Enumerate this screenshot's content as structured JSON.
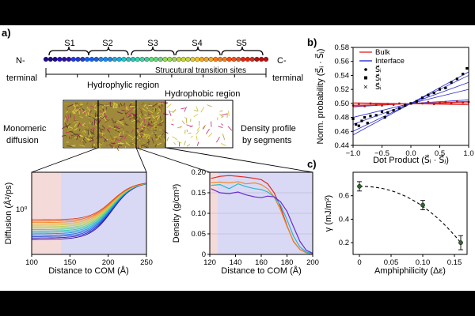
{
  "panels": {
    "a": "a)",
    "b": "b)",
    "c": "c)"
  },
  "panel_a": {
    "segments": [
      "S1",
      "S2",
      "S3",
      "S4",
      "S5"
    ],
    "n_terminal": [
      "N-",
      "terminal"
    ],
    "c_terminal": [
      "C-",
      "terminal"
    ],
    "transition_label": "Strucutural transition sites",
    "hydrophylic_label": "Hydrophylic region",
    "hydrophobic_label": "Hydrophobic region",
    "monomeric_label": [
      "Monomeric",
      "diffusion"
    ],
    "density_label": [
      "Density profile",
      "by segments"
    ],
    "bead_colors": [
      "#1a0a8c",
      "#2a0fb0",
      "#1f3ad6",
      "#1560e8",
      "#1e88e6",
      "#22a8d8",
      "#27c4c2",
      "#3ed0a0",
      "#6ad67a",
      "#9ad85a",
      "#c6d63e",
      "#e8c830",
      "#f5a623",
      "#f57e1c",
      "#ee5318",
      "#d92a15",
      "#b3120f"
    ],
    "diffusion_plot": {
      "ylabel": "Diffusion (Å²/ps)",
      "xlabel": "Distance to COM (Å)",
      "xticks": [
        "100",
        "150",
        "200",
        "250"
      ],
      "ytick": "10⁰",
      "xlim": [
        100,
        250
      ],
      "curve_colors": [
        "#2b0aa8",
        "#3a1ec0",
        "#1f4ad8",
        "#1d6fe8",
        "#1a93e0",
        "#20b0d0",
        "#2fc6b0",
        "#58d08a",
        "#8bd46a",
        "#b6d24e",
        "#d6c83e",
        "#eeb036",
        "#f4902c",
        "#ef6a24",
        "#e0401e"
      ]
    },
    "density_plot": {
      "ylabel": "Density (g/cm³)",
      "xlabel": "Distance to COM (Å)",
      "xticks": [
        "120",
        "140",
        "160",
        "180",
        "200"
      ],
      "yticks": [
        "0",
        "0.05",
        "0.10",
        "0.15",
        "0.20"
      ],
      "xlim": [
        120,
        200
      ],
      "ylim": [
        0,
        0.2
      ],
      "series": [
        {
          "color": "#e0261e",
          "x": [
            121,
            128,
            135,
            142,
            148,
            155,
            160,
            165,
            170,
            175,
            180,
            185,
            190,
            195,
            200
          ],
          "y": [
            0.185,
            0.19,
            0.192,
            0.19,
            0.188,
            0.185,
            0.182,
            0.172,
            0.15,
            0.115,
            0.07,
            0.032,
            0.012,
            0.004,
            0.001
          ]
        },
        {
          "color": "#f08a2a",
          "x": [
            121,
            128,
            135,
            142,
            148,
            155,
            160,
            165,
            170,
            175,
            180,
            185,
            190,
            195,
            200
          ],
          "y": [
            0.175,
            0.176,
            0.174,
            0.177,
            0.172,
            0.174,
            0.17,
            0.16,
            0.14,
            0.108,
            0.068,
            0.033,
            0.012,
            0.004,
            0.001
          ]
        },
        {
          "color": "#29b7c9",
          "x": [
            121,
            128,
            135,
            142,
            148,
            155,
            160,
            165,
            170,
            175,
            180,
            185,
            190,
            195,
            200
          ],
          "y": [
            0.168,
            0.17,
            0.16,
            0.172,
            0.165,
            0.16,
            0.158,
            0.152,
            0.14,
            0.12,
            0.085,
            0.045,
            0.018,
            0.006,
            0.002
          ]
        },
        {
          "color": "#6a2ad1",
          "x": [
            121,
            128,
            135,
            142,
            148,
            155,
            160,
            165,
            170,
            175,
            180,
            185,
            190,
            195,
            200
          ],
          "y": [
            0.16,
            0.15,
            0.148,
            0.152,
            0.145,
            0.14,
            0.138,
            0.142,
            0.14,
            0.128,
            0.105,
            0.068,
            0.032,
            0.01,
            0.003
          ]
        }
      ]
    }
  },
  "panel_b": {
    "chart_data": {
      "type": "scatter",
      "xlabel": "Dot Product  (S⃗ᵢ · S⃗ⱼ)",
      "ylabel": "Norm. probability (S⃗ᵢ · S⃗ⱼ)",
      "xlim": [
        -1.0,
        1.0
      ],
      "ylim": [
        0.44,
        0.58
      ],
      "xticks": [
        "−1.0",
        "−0.5",
        "0.0",
        "0.5",
        "1.0"
      ],
      "yticks": [
        "0.44",
        "0.46",
        "0.48",
        "0.50",
        "0.52",
        "0.54",
        "0.56",
        "0.58"
      ],
      "legend": [
        "Bulk",
        "Interface",
        "S⃗ᵢ",
        "S⃗ᵢ",
        "S⃗ᵢ"
      ],
      "bulk_points": [
        [
          -1.0,
          0.497
        ],
        [
          -0.9,
          0.499
        ],
        [
          -0.8,
          0.496
        ],
        [
          -0.7,
          0.5
        ],
        [
          -0.6,
          0.498
        ],
        [
          -0.5,
          0.497
        ],
        [
          -0.4,
          0.499
        ],
        [
          -0.3,
          0.498
        ],
        [
          -0.2,
          0.5
        ],
        [
          -0.1,
          0.499
        ],
        [
          0.0,
          0.5
        ],
        [
          0.1,
          0.501
        ],
        [
          0.2,
          0.5
        ],
        [
          0.3,
          0.502
        ],
        [
          0.4,
          0.499
        ],
        [
          0.5,
          0.501
        ],
        [
          0.6,
          0.502
        ],
        [
          0.7,
          0.5
        ],
        [
          0.8,
          0.503
        ],
        [
          0.9,
          0.501
        ],
        [
          1.0,
          0.502
        ]
      ],
      "interface_points": [
        [
          -1.0,
          0.478
        ],
        [
          -0.95,
          0.47
        ],
        [
          -0.9,
          0.468
        ],
        [
          -0.85,
          0.475
        ],
        [
          -0.8,
          0.48
        ],
        [
          -0.75,
          0.472
        ],
        [
          -0.7,
          0.482
        ],
        [
          -0.6,
          0.483
        ],
        [
          -0.5,
          0.488
        ],
        [
          -0.45,
          0.48
        ],
        [
          -0.4,
          0.487
        ],
        [
          -0.3,
          0.49
        ],
        [
          -0.2,
          0.493
        ],
        [
          -0.1,
          0.497
        ],
        [
          0.0,
          0.5
        ],
        [
          0.1,
          0.503
        ],
        [
          0.2,
          0.508
        ],
        [
          0.3,
          0.512
        ],
        [
          0.4,
          0.515
        ],
        [
          0.5,
          0.52
        ],
        [
          0.6,
          0.522
        ],
        [
          0.7,
          0.53
        ],
        [
          0.8,
          0.535
        ],
        [
          0.9,
          0.542
        ],
        [
          0.97,
          0.55
        ]
      ],
      "fit_lines": [
        [
          [
            -1.0,
            0.495
          ],
          [
            1.0,
            0.505
          ]
        ],
        [
          [
            -1.0,
            0.46
          ],
          [
            1.0,
            0.54
          ]
        ],
        [
          [
            -1.0,
            0.47
          ],
          [
            1.0,
            0.53
          ]
        ],
        [
          [
            -1.0,
            0.455
          ],
          [
            1.0,
            0.545
          ]
        ],
        [
          [
            -1.0,
            0.48
          ],
          [
            1.0,
            0.52
          ]
        ]
      ],
      "bulk_bands": [
        [
          [
            -1.0,
            0.499
          ],
          [
            1.0,
            0.5
          ]
        ],
        [
          [
            -1.0,
            0.497
          ],
          [
            1.0,
            0.502
          ]
        ],
        [
          [
            -1.0,
            0.501
          ],
          [
            1.0,
            0.498
          ]
        ],
        [
          [
            -1.0,
            0.496
          ],
          [
            1.0,
            0.503
          ]
        ]
      ]
    }
  },
  "panel_c": {
    "chart_data": {
      "type": "line",
      "xlabel": "Amphiphilicity (Δε)",
      "ylabel": "γ (mJ/m²)",
      "x": [
        0.0,
        0.1,
        0.16
      ],
      "y": [
        0.68,
        0.52,
        0.2
      ],
      "err": [
        0.04,
        0.04,
        0.06
      ],
      "xlim": [
        -0.01,
        0.17
      ],
      "ylim": [
        0.1,
        0.8
      ],
      "xticks": [
        "0",
        "0.05",
        "0.10",
        "0.15"
      ],
      "yticks": [
        "0.2",
        "0.4",
        "0.6"
      ]
    }
  }
}
